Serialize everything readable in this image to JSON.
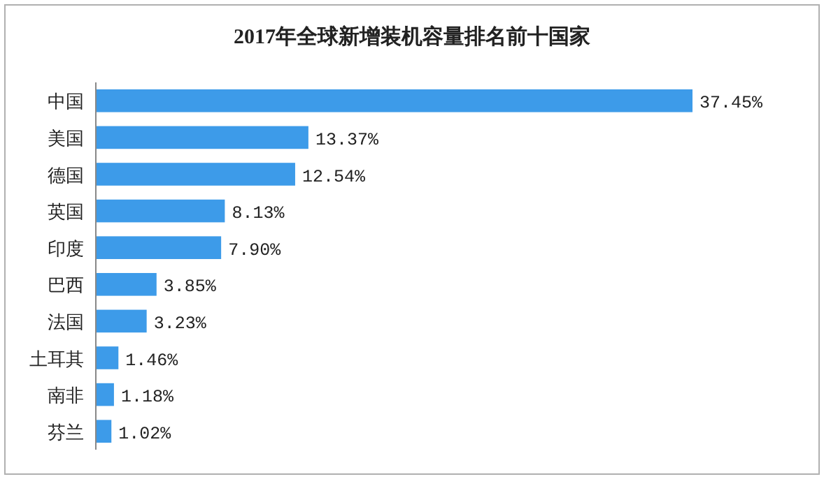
{
  "chart_data": {
    "type": "bar",
    "orientation": "horizontal",
    "title": "2017年全球新增装机容量排名前十国家",
    "categories": [
      "中国",
      "美国",
      "德国",
      "英国",
      "印度",
      "巴西",
      "法国",
      "土耳其",
      "南非",
      "芬兰"
    ],
    "values": [
      37.45,
      13.37,
      12.54,
      8.13,
      7.9,
      3.85,
      3.23,
      1.46,
      1.18,
      1.02
    ],
    "value_labels": [
      "37.45%",
      "13.37%",
      "12.54%",
      "8.13%",
      "7.90%",
      "3.85%",
      "3.23%",
      "1.46%",
      "1.18%",
      "1.02%"
    ],
    "color": "#3d9be9"
  }
}
